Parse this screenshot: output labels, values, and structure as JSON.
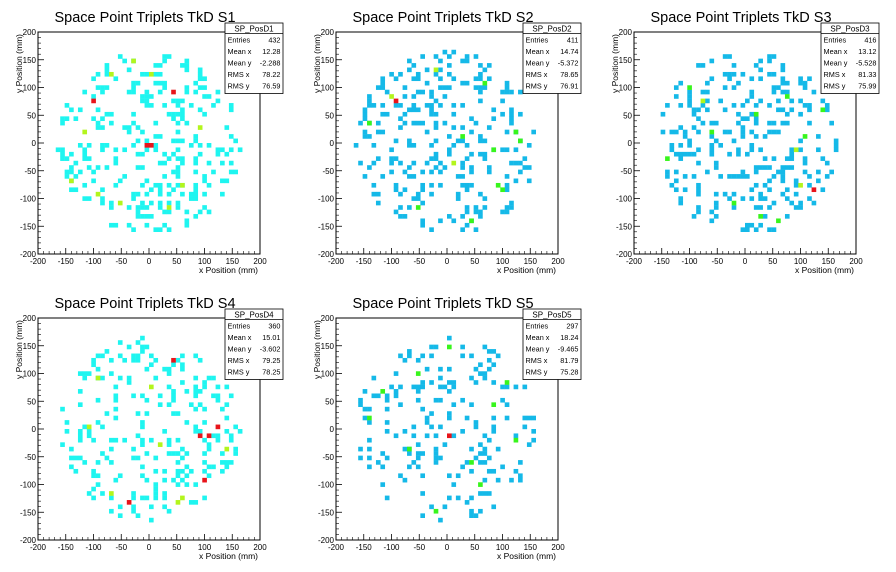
{
  "chart_data": [
    {
      "type": "heatmap",
      "title": "Space Point Triplets TkD S1",
      "xlabel": "x Position (mm)",
      "ylabel": "y Position (mm)",
      "xlim": [
        -200,
        200
      ],
      "ylim": [
        -200,
        200
      ],
      "xticks": [
        "-200",
        "-150",
        "-100",
        "-50",
        "0",
        "50",
        "100",
        "150",
        "200"
      ],
      "yticks": [
        "-200",
        "-150",
        "-100",
        "-50",
        "0",
        "50",
        "100",
        "150",
        "200"
      ],
      "stats": {
        "name": "SP_PosD1",
        "rows": [
          {
            "label": "Entries",
            "value": "432"
          },
          {
            "label": "Mean x",
            "value": "12.28"
          },
          {
            "label": "Mean y",
            "value": "-2.288"
          },
          {
            "label": "RMS x",
            "value": "78.22"
          },
          {
            "label": "RMS y",
            "value": "76.59"
          }
        ]
      },
      "fill_color": "#1ff5f0",
      "entries": 432,
      "highlights": [
        {
          "x": -97,
          "y": 75,
          "level": "red"
        },
        {
          "x": 42,
          "y": 92,
          "level": "red"
        },
        {
          "x": -2,
          "y": -3,
          "level": "red"
        },
        {
          "x": 5,
          "y": -3,
          "level": "red"
        },
        {
          "x": -30,
          "y": 145,
          "level": "yellow"
        },
        {
          "x": -70,
          "y": 120,
          "level": "yellow"
        },
        {
          "x": 0,
          "y": 125,
          "level": "yellow"
        },
        {
          "x": -120,
          "y": 20,
          "level": "yellow"
        },
        {
          "x": -90,
          "y": -95,
          "level": "yellow"
        },
        {
          "x": 35,
          "y": -120,
          "level": "yellow"
        },
        {
          "x": -50,
          "y": -110,
          "level": "yellow"
        },
        {
          "x": 90,
          "y": 30,
          "level": "yellow"
        },
        {
          "x": 60,
          "y": -80,
          "level": "yellow"
        },
        {
          "x": -140,
          "y": -70,
          "level": "yellow"
        }
      ]
    },
    {
      "type": "heatmap",
      "title": "Space Point Triplets TkD S2",
      "xlabel": "x Position (mm)",
      "ylabel": "y Position (mm)",
      "xlim": [
        -200,
        200
      ],
      "ylim": [
        -200,
        200
      ],
      "xticks": [
        "-200",
        "-150",
        "-100",
        "-50",
        "0",
        "50",
        "100",
        "150",
        "200"
      ],
      "yticks": [
        "-200",
        "-150",
        "-100",
        "-50",
        "0",
        "50",
        "100",
        "150",
        "200"
      ],
      "stats": {
        "name": "SP_PosD2",
        "rows": [
          {
            "label": "Entries",
            "value": "411"
          },
          {
            "label": "Mean x",
            "value": "14.74"
          },
          {
            "label": "Mean y",
            "value": "-5.372"
          },
          {
            "label": "RMS x",
            "value": "78.65"
          },
          {
            "label": "RMS y",
            "value": "76.91"
          }
        ]
      },
      "fill_color": "#15b9e8",
      "entries": 411,
      "highlights": [
        {
          "x": -92,
          "y": 75,
          "level": "red"
        },
        {
          "x": -97,
          "y": 80,
          "level": "yellow"
        },
        {
          "x": -20,
          "y": 130,
          "level": "yellow"
        },
        {
          "x": 70,
          "y": 110,
          "level": "green"
        },
        {
          "x": -140,
          "y": 35,
          "level": "green"
        },
        {
          "x": 25,
          "y": 10,
          "level": "green"
        },
        {
          "x": 80,
          "y": -10,
          "level": "green"
        },
        {
          "x": 120,
          "y": 20,
          "level": "green"
        },
        {
          "x": 90,
          "y": -80,
          "level": "green"
        },
        {
          "x": 100,
          "y": -85,
          "level": "green"
        },
        {
          "x": -50,
          "y": -120,
          "level": "green"
        },
        {
          "x": 40,
          "y": -140,
          "level": "green"
        },
        {
          "x": 130,
          "y": 5,
          "level": "green"
        },
        {
          "x": 15,
          "y": -40,
          "level": "yellow"
        }
      ]
    },
    {
      "type": "heatmap",
      "title": "Space Point Triplets TkD S3",
      "xlabel": "x Position (mm)",
      "ylabel": "y Position (mm)",
      "xlim": [
        -200,
        200
      ],
      "ylim": [
        -200,
        200
      ],
      "xticks": [
        "-200",
        "-150",
        "-100",
        "-50",
        "0",
        "50",
        "100",
        "150",
        "200"
      ],
      "yticks": [
        "-200",
        "-150",
        "-100",
        "-50",
        "0",
        "50",
        "100",
        "150",
        "200"
      ],
      "stats": {
        "name": "SP_PosD3",
        "rows": [
          {
            "label": "Entries",
            "value": "416"
          },
          {
            "label": "Mean x",
            "value": "13.12"
          },
          {
            "label": "Mean y",
            "value": "-5.528"
          },
          {
            "label": "RMS x",
            "value": "81.33"
          },
          {
            "label": "RMS y",
            "value": "75.99"
          }
        ]
      },
      "fill_color": "#15b9e8",
      "entries": 416,
      "highlights": [
        {
          "x": 120,
          "y": -85,
          "level": "red"
        },
        {
          "x": 100,
          "y": -80,
          "level": "yellow"
        },
        {
          "x": 90,
          "y": -10,
          "level": "yellow"
        },
        {
          "x": -80,
          "y": 75,
          "level": "yellow"
        },
        {
          "x": -100,
          "y": 100,
          "level": "green"
        },
        {
          "x": -60,
          "y": 20,
          "level": "green"
        },
        {
          "x": 20,
          "y": 50,
          "level": "green"
        },
        {
          "x": 140,
          "y": 60,
          "level": "green"
        },
        {
          "x": 110,
          "y": 10,
          "level": "green"
        },
        {
          "x": 60,
          "y": -140,
          "level": "green"
        },
        {
          "x": -20,
          "y": -110,
          "level": "green"
        },
        {
          "x": 30,
          "y": -130,
          "level": "green"
        },
        {
          "x": -140,
          "y": -30,
          "level": "green"
        },
        {
          "x": 75,
          "y": 85,
          "level": "green"
        }
      ]
    },
    {
      "type": "heatmap",
      "title": "Space Point Triplets TkD S4",
      "xlabel": "x Position (mm)",
      "ylabel": "y Position (mm)",
      "xlim": [
        -200,
        200
      ],
      "ylim": [
        -200,
        200
      ],
      "xticks": [
        "-200",
        "-150",
        "-100",
        "-50",
        "0",
        "50",
        "100",
        "150",
        "200"
      ],
      "yticks": [
        "-200",
        "-150",
        "-100",
        "-50",
        "0",
        "50",
        "100",
        "150",
        "200"
      ],
      "stats": {
        "name": "SP_PosD4",
        "rows": [
          {
            "label": "Entries",
            "value": "360"
          },
          {
            "label": "Mean x",
            "value": "15.01"
          },
          {
            "label": "Mean y",
            "value": "-3.602"
          },
          {
            "label": "RMS x",
            "value": "79.25"
          },
          {
            "label": "RMS y",
            "value": "78.25"
          }
        ]
      },
      "fill_color": "#1ff5f0",
      "entries": 360,
      "highlights": [
        {
          "x": 40,
          "y": 125,
          "level": "red"
        },
        {
          "x": 90,
          "y": -10,
          "level": "red"
        },
        {
          "x": 110,
          "y": -15,
          "level": "red"
        },
        {
          "x": 125,
          "y": 0,
          "level": "red"
        },
        {
          "x": 100,
          "y": -95,
          "level": "red"
        },
        {
          "x": -40,
          "y": -135,
          "level": "red"
        },
        {
          "x": 55,
          "y": -130,
          "level": "yellow"
        },
        {
          "x": 60,
          "y": -125,
          "level": "yellow"
        },
        {
          "x": -70,
          "y": -120,
          "level": "yellow"
        },
        {
          "x": -110,
          "y": 0,
          "level": "yellow"
        },
        {
          "x": 20,
          "y": -30,
          "level": "yellow"
        },
        {
          "x": 140,
          "y": -40,
          "level": "yellow"
        },
        {
          "x": 0,
          "y": 75,
          "level": "yellow"
        },
        {
          "x": -90,
          "y": 95,
          "level": "yellow"
        }
      ]
    },
    {
      "type": "heatmap",
      "title": "Space Point Triplets TkD S5",
      "xlabel": "x Position (mm)",
      "ylabel": "y Position (mm)",
      "xlim": [
        -200,
        200
      ],
      "ylim": [
        -200,
        200
      ],
      "xticks": [
        "-200",
        "-150",
        "-100",
        "-50",
        "0",
        "50",
        "100",
        "150",
        "200"
      ],
      "yticks": [
        "-200",
        "-150",
        "-100",
        "-50",
        "0",
        "50",
        "100",
        "150",
        "200"
      ],
      "stats": {
        "name": "SP_PosD5",
        "rows": [
          {
            "label": "Entries",
            "value": "297"
          },
          {
            "label": "Mean x",
            "value": "18.24"
          },
          {
            "label": "Mean y",
            "value": "-9.465"
          },
          {
            "label": "RMS x",
            "value": "81.79"
          },
          {
            "label": "RMS y",
            "value": "75.28"
          }
        ]
      },
      "fill_color": "#15b9e8",
      "entries": 297,
      "highlights": [
        {
          "x": 0,
          "y": -15,
          "level": "red"
        },
        {
          "x": 5,
          "y": 150,
          "level": "green"
        },
        {
          "x": -120,
          "y": 65,
          "level": "green"
        },
        {
          "x": -140,
          "y": 20,
          "level": "green"
        },
        {
          "x": -70,
          "y": -40,
          "level": "green"
        },
        {
          "x": 40,
          "y": -60,
          "level": "green"
        },
        {
          "x": 80,
          "y": 40,
          "level": "green"
        },
        {
          "x": 120,
          "y": -20,
          "level": "green"
        },
        {
          "x": -20,
          "y": -150,
          "level": "green"
        },
        {
          "x": 110,
          "y": 80,
          "level": "green"
        },
        {
          "x": 60,
          "y": -100,
          "level": "green"
        },
        {
          "x": -50,
          "y": 100,
          "level": "green"
        }
      ]
    }
  ]
}
